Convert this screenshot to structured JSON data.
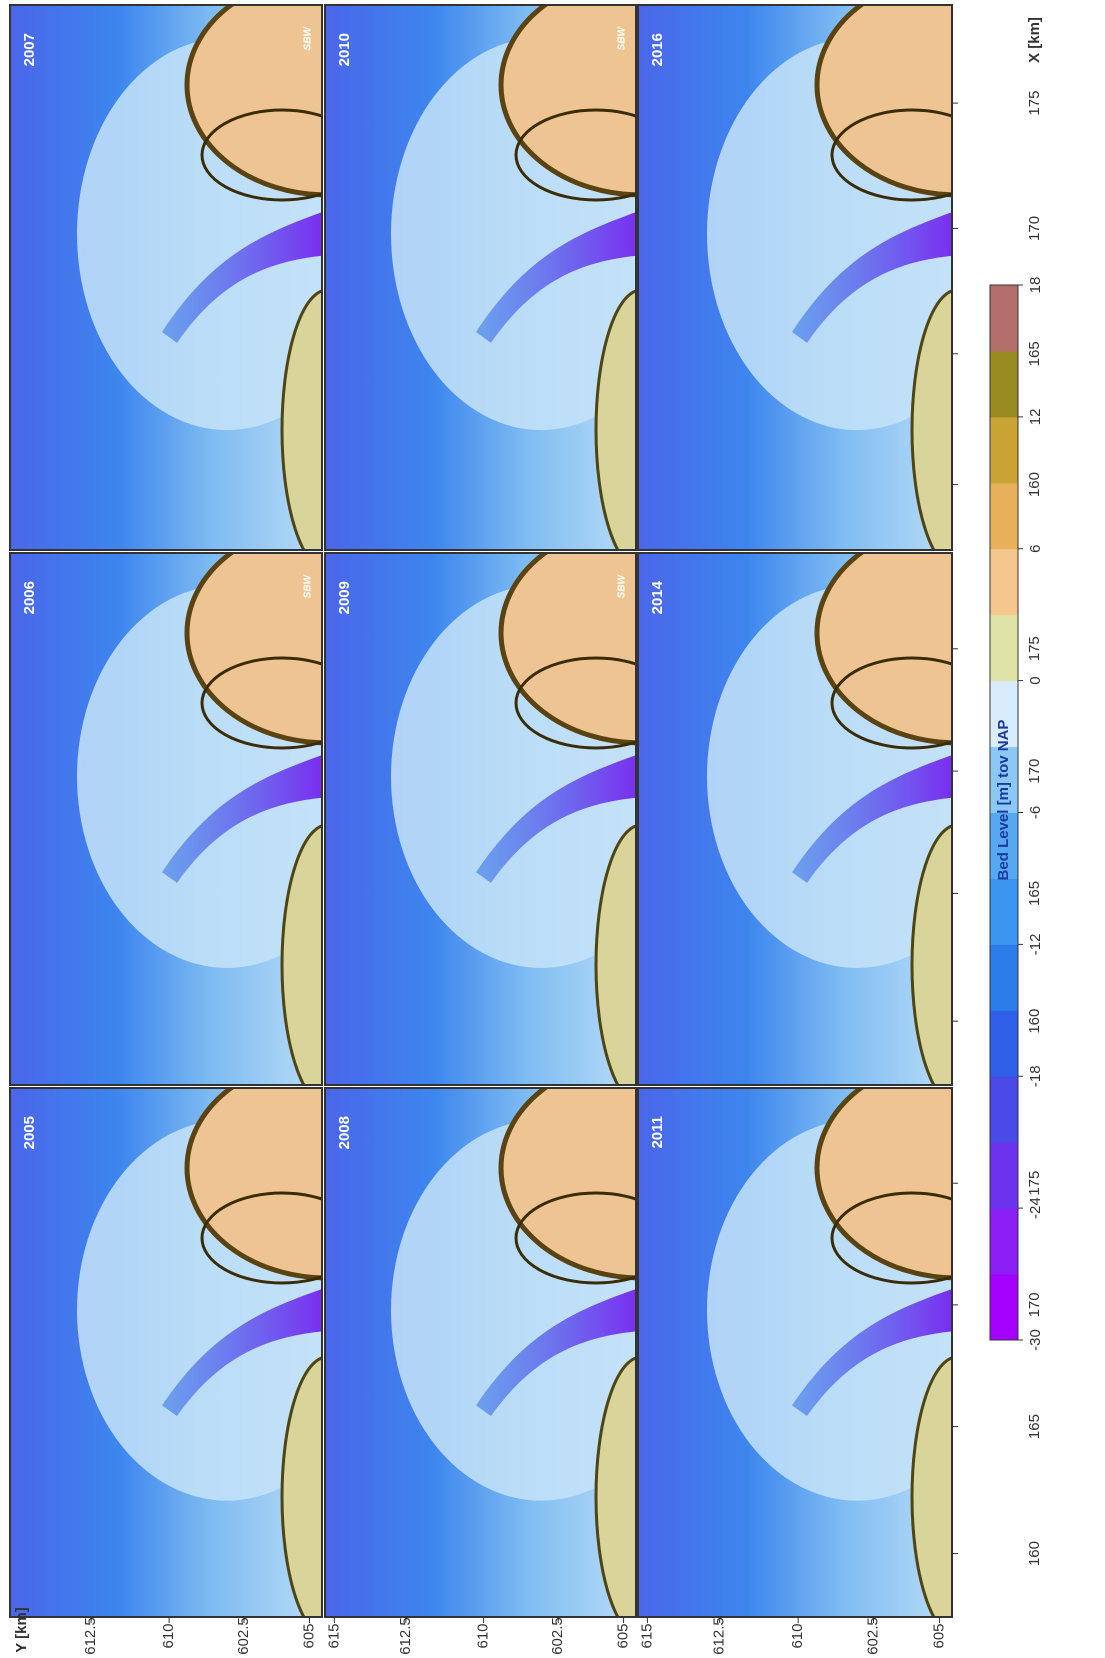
{
  "panels": [
    {
      "year": "2007",
      "label": "SBW"
    },
    {
      "year": "2010",
      "label": "SBW"
    },
    {
      "year": "2016"
    },
    {
      "year": "2006",
      "label": "SBW"
    },
    {
      "year": "2009",
      "label": "SBW"
    },
    {
      "year": "2014"
    },
    {
      "year": "2005"
    },
    {
      "year": "2008"
    },
    {
      "year": "2011"
    }
  ],
  "x_axis": {
    "label": "X [km]",
    "rows": [
      [
        175,
        170,
        165,
        160
      ],
      [
        175,
        170,
        165,
        160
      ],
      [
        175,
        170,
        165,
        160
      ]
    ]
  },
  "y_axis": {
    "label": "Y [km]",
    "columns": [
      [
        612.5,
        610,
        602.5,
        605
      ],
      [
        615,
        612.5,
        610,
        602.5,
        605
      ],
      [
        615,
        612.5,
        610,
        602.5,
        605
      ]
    ]
  },
  "colorbar": {
    "label": "Bed Level  [m] tov NAP",
    "ticks": [
      -30,
      -24,
      -18,
      -12,
      -6,
      0,
      6,
      12,
      18
    ],
    "colors": [
      "#a400ff",
      "#8a1ef5",
      "#6c33ee",
      "#4a4ae8",
      "#3060ea",
      "#2b7ee8",
      "#3a95ee",
      "#56a8f0",
      "#8cc8f5",
      "#d8ecfb",
      "#dfe3a7",
      "#f5c78e",
      "#e8b05a",
      "#c9a435",
      "#9a8a22",
      "#b46e6a"
    ]
  }
}
